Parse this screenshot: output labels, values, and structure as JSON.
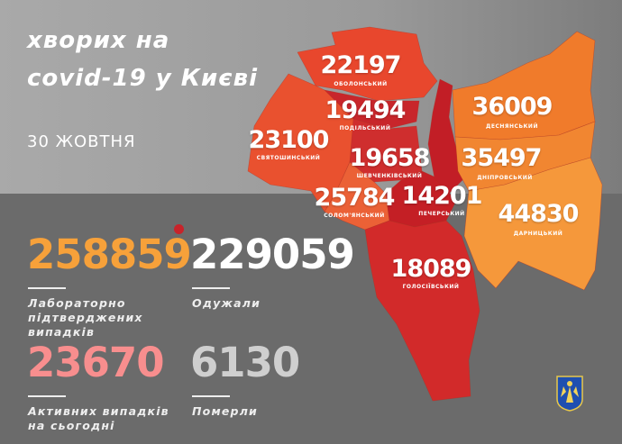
{
  "title": {
    "line1": "хворих на",
    "line2": "covid-19 у Києві",
    "date": "30 ЖОВТНЯ"
  },
  "districts": [
    {
      "name": "Оболонський",
      "value": "22197",
      "color": "#e8472d"
    },
    {
      "name": "Подільський",
      "value": "19494",
      "color": "#c8262b"
    },
    {
      "name": "Святошинський",
      "value": "23100",
      "color": "#e9512f"
    },
    {
      "name": "Шевченківський",
      "value": "19658",
      "color": "#cf2e2e"
    },
    {
      "name": "Солом'янський",
      "value": "25784",
      "color": "#eb6136"
    },
    {
      "name": "Печерський",
      "value": "14201",
      "color": "#c41f25"
    },
    {
      "name": "Деснянський",
      "value": "36009",
      "color": "#f07b2b"
    },
    {
      "name": "Дніпровський",
      "value": "35497",
      "color": "#f18631"
    },
    {
      "name": "Дарницький",
      "value": "44830",
      "color": "#f5983b"
    },
    {
      "name": "Голосіївський",
      "value": "18089",
      "color": "#d22a2a"
    }
  ],
  "stats": {
    "confirmed": {
      "value": "258859",
      "label1": "Лабораторно",
      "label2": "підтверджених",
      "label3": "випадків",
      "color": "#f7a13a"
    },
    "recovered": {
      "value": "229059",
      "label1": "Одужали",
      "color": "#ffffff"
    },
    "active": {
      "value": "23670",
      "label1": "Активних випадків",
      "label2": "на сьогодні",
      "color": "#f88e8e"
    },
    "deaths": {
      "value": "6130",
      "label1": "Померли",
      "color": "#cfcfcf"
    }
  }
}
